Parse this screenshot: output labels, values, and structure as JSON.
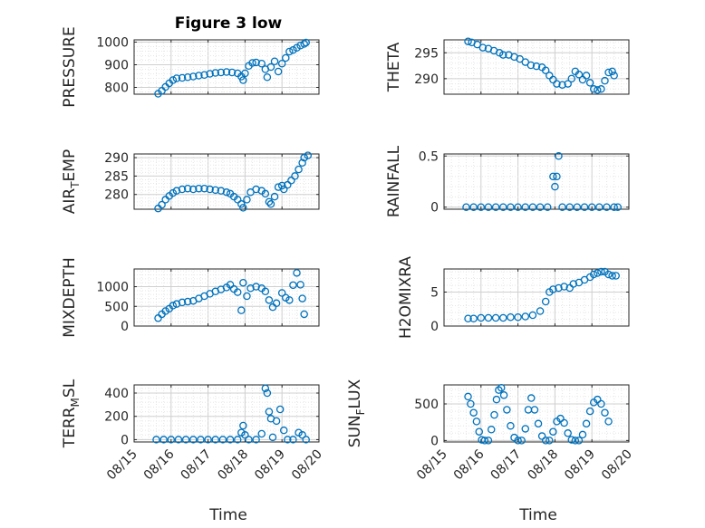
{
  "figure": {
    "title": "Figure 3 low",
    "xlabel": "Time",
    "marker_color": "#0072BD",
    "marker": "open-circle",
    "grid": "major+minor dotted"
  },
  "x_ticks": [
    "08/15",
    "08/16",
    "08/17",
    "08/18",
    "08/19",
    "08/20"
  ],
  "chart_data": [
    {
      "type": "scatter",
      "ylabel": "PRESSURE",
      "title": "Figure 3 low",
      "xlim": [
        15,
        20
      ],
      "ylim": [
        770,
        1010
      ],
      "yticks": [
        {
          "v": 800,
          "t": "800"
        },
        {
          "v": 900,
          "t": "900"
        },
        {
          "v": 1000,
          "t": "1000"
        }
      ],
      "points": [
        [
          15.65,
          772
        ],
        [
          15.75,
          785
        ],
        [
          15.85,
          802
        ],
        [
          15.95,
          818
        ],
        [
          16.05,
          832
        ],
        [
          16.15,
          840
        ],
        [
          16.3,
          842
        ],
        [
          16.45,
          845
        ],
        [
          16.6,
          848
        ],
        [
          16.75,
          852
        ],
        [
          16.9,
          855
        ],
        [
          17.05,
          860
        ],
        [
          17.2,
          864
        ],
        [
          17.35,
          866
        ],
        [
          17.5,
          868
        ],
        [
          17.65,
          866
        ],
        [
          17.8,
          862
        ],
        [
          17.9,
          848
        ],
        [
          17.95,
          832
        ],
        [
          18.0,
          862
        ],
        [
          18.1,
          895
        ],
        [
          18.2,
          908
        ],
        [
          18.3,
          910
        ],
        [
          18.45,
          905
        ],
        [
          18.55,
          880
        ],
        [
          18.6,
          845
        ],
        [
          18.7,
          890
        ],
        [
          18.8,
          915
        ],
        [
          18.9,
          870
        ],
        [
          19.0,
          905
        ],
        [
          19.1,
          930
        ],
        [
          19.2,
          958
        ],
        [
          19.3,
          965
        ],
        [
          19.4,
          975
        ],
        [
          19.5,
          985
        ],
        [
          19.6,
          992
        ],
        [
          19.65,
          998
        ]
      ]
    },
    {
      "type": "scatter",
      "ylabel": "THETA",
      "xlim": [
        15,
        20
      ],
      "ylim": [
        287,
        297.5
      ],
      "yticks": [
        {
          "v": 290,
          "t": "290"
        },
        {
          "v": 295,
          "t": "295"
        }
      ],
      "points": [
        [
          15.65,
          297.2
        ],
        [
          15.75,
          297.0
        ],
        [
          15.9,
          296.6
        ],
        [
          16.05,
          296.0
        ],
        [
          16.2,
          295.8
        ],
        [
          16.35,
          295.4
        ],
        [
          16.5,
          295.0
        ],
        [
          16.6,
          294.6
        ],
        [
          16.75,
          294.6
        ],
        [
          16.9,
          294.2
        ],
        [
          17.05,
          293.8
        ],
        [
          17.2,
          293.2
        ],
        [
          17.35,
          292.6
        ],
        [
          17.5,
          292.4
        ],
        [
          17.65,
          292.2
        ],
        [
          17.75,
          291.6
        ],
        [
          17.85,
          290.6
        ],
        [
          17.95,
          289.8
        ],
        [
          18.05,
          289.0
        ],
        [
          18.2,
          288.8
        ],
        [
          18.35,
          289.0
        ],
        [
          18.45,
          290.0
        ],
        [
          18.55,
          291.4
        ],
        [
          18.65,
          290.8
        ],
        [
          18.75,
          289.8
        ],
        [
          18.85,
          290.6
        ],
        [
          18.95,
          289.2
        ],
        [
          19.05,
          288.0
        ],
        [
          19.15,
          287.8
        ],
        [
          19.25,
          288.0
        ],
        [
          19.35,
          289.6
        ],
        [
          19.45,
          291.2
        ],
        [
          19.55,
          291.4
        ],
        [
          19.6,
          290.6
        ]
      ]
    },
    {
      "type": "scatter",
      "ylabel": "AIR_TEMP",
      "ylabel_parts": [
        "AIR",
        "T",
        "EMP"
      ],
      "xlim": [
        15,
        20
      ],
      "ylim": [
        276,
        291
      ],
      "yticks": [
        {
          "v": 280,
          "t": "280"
        },
        {
          "v": 285,
          "t": "285"
        },
        {
          "v": 290,
          "t": "290"
        }
      ],
      "points": [
        [
          15.65,
          276.2
        ],
        [
          15.75,
          277.2
        ],
        [
          15.85,
          278.6
        ],
        [
          15.95,
          279.6
        ],
        [
          16.05,
          280.4
        ],
        [
          16.15,
          281.0
        ],
        [
          16.3,
          281.4
        ],
        [
          16.45,
          281.6
        ],
        [
          16.6,
          281.4
        ],
        [
          16.75,
          281.6
        ],
        [
          16.9,
          281.6
        ],
        [
          17.05,
          281.4
        ],
        [
          17.2,
          281.2
        ],
        [
          17.35,
          281.0
        ],
        [
          17.5,
          280.6
        ],
        [
          17.6,
          280.2
        ],
        [
          17.7,
          279.4
        ],
        [
          17.8,
          278.6
        ],
        [
          17.9,
          277.4
        ],
        [
          17.95,
          276.4
        ],
        [
          18.05,
          278.6
        ],
        [
          18.15,
          280.6
        ],
        [
          18.3,
          281.4
        ],
        [
          18.45,
          281.0
        ],
        [
          18.55,
          280.2
        ],
        [
          18.65,
          278.0
        ],
        [
          18.7,
          277.4
        ],
        [
          18.8,
          279.4
        ],
        [
          18.9,
          282.0
        ],
        [
          19.0,
          282.4
        ],
        [
          19.05,
          281.4
        ],
        [
          19.15,
          282.6
        ],
        [
          19.25,
          283.8
        ],
        [
          19.35,
          285.0
        ],
        [
          19.45,
          286.8
        ],
        [
          19.55,
          288.6
        ],
        [
          19.6,
          290.0
        ],
        [
          19.7,
          290.6
        ]
      ]
    },
    {
      "type": "scatter",
      "ylabel": "RAINFALL",
      "xlim": [
        15,
        20
      ],
      "ylim": [
        -0.02,
        0.52
      ],
      "yticks": [
        {
          "v": 0,
          "t": "0"
        },
        {
          "v": 0.5,
          "t": "0.5"
        }
      ],
      "points": [
        [
          15.6,
          0
        ],
        [
          15.8,
          0
        ],
        [
          16.0,
          0
        ],
        [
          16.2,
          0
        ],
        [
          16.4,
          0
        ],
        [
          16.6,
          0
        ],
        [
          16.8,
          0
        ],
        [
          17.0,
          0
        ],
        [
          17.2,
          0
        ],
        [
          17.4,
          0
        ],
        [
          17.6,
          0
        ],
        [
          17.8,
          0
        ],
        [
          17.95,
          0.3
        ],
        [
          18.0,
          0.2
        ],
        [
          18.05,
          0.3
        ],
        [
          18.1,
          0.5
        ],
        [
          18.2,
          0
        ],
        [
          18.4,
          0
        ],
        [
          18.6,
          0
        ],
        [
          18.8,
          0
        ],
        [
          19.0,
          0
        ],
        [
          19.2,
          0
        ],
        [
          19.4,
          0
        ],
        [
          19.6,
          0
        ],
        [
          19.7,
          0
        ]
      ]
    },
    {
      "type": "scatter",
      "ylabel": "MIXDEPTH",
      "xlim": [
        15,
        20
      ],
      "ylim": [
        0,
        1450
      ],
      "yticks": [
        {
          "v": 0,
          "t": "0"
        },
        {
          "v": 500,
          "t": "500"
        },
        {
          "v": 1000,
          "t": "1000"
        }
      ],
      "points": [
        [
          15.65,
          200
        ],
        [
          15.75,
          300
        ],
        [
          15.85,
          380
        ],
        [
          15.95,
          440
        ],
        [
          16.05,
          520
        ],
        [
          16.15,
          560
        ],
        [
          16.3,
          600
        ],
        [
          16.45,
          620
        ],
        [
          16.6,
          640
        ],
        [
          16.75,
          700
        ],
        [
          16.9,
          760
        ],
        [
          17.05,
          820
        ],
        [
          17.2,
          880
        ],
        [
          17.35,
          930
        ],
        [
          17.5,
          980
        ],
        [
          17.6,
          1050
        ],
        [
          17.7,
          940
        ],
        [
          17.8,
          860
        ],
        [
          17.9,
          400
        ],
        [
          17.95,
          1100
        ],
        [
          18.05,
          760
        ],
        [
          18.15,
          960
        ],
        [
          18.3,
          1000
        ],
        [
          18.45,
          960
        ],
        [
          18.55,
          880
        ],
        [
          18.65,
          660
        ],
        [
          18.75,
          480
        ],
        [
          18.85,
          580
        ],
        [
          19.0,
          840
        ],
        [
          19.1,
          720
        ],
        [
          19.2,
          660
        ],
        [
          19.3,
          1040
        ],
        [
          19.4,
          1350
        ],
        [
          19.5,
          1050
        ],
        [
          19.55,
          700
        ],
        [
          19.6,
          300
        ]
      ]
    },
    {
      "type": "scatter",
      "ylabel": "H2OMIXRA",
      "xlim": [
        15,
        20
      ],
      "ylim": [
        0,
        8.4
      ],
      "yticks": [
        {
          "v": 0,
          "t": "0"
        },
        {
          "v": 5,
          "t": "5"
        }
      ],
      "points": [
        [
          15.65,
          1.1
        ],
        [
          15.8,
          1.1
        ],
        [
          16.0,
          1.2
        ],
        [
          16.2,
          1.2
        ],
        [
          16.4,
          1.2
        ],
        [
          16.6,
          1.2
        ],
        [
          16.8,
          1.3
        ],
        [
          17.0,
          1.3
        ],
        [
          17.2,
          1.4
        ],
        [
          17.4,
          1.6
        ],
        [
          17.6,
          2.2
        ],
        [
          17.75,
          3.6
        ],
        [
          17.85,
          5.0
        ],
        [
          17.95,
          5.4
        ],
        [
          18.1,
          5.6
        ],
        [
          18.25,
          5.8
        ],
        [
          18.4,
          5.6
        ],
        [
          18.5,
          6.2
        ],
        [
          18.65,
          6.4
        ],
        [
          18.8,
          6.8
        ],
        [
          18.95,
          7.2
        ],
        [
          19.05,
          7.6
        ],
        [
          19.15,
          7.8
        ],
        [
          19.25,
          8.0
        ],
        [
          19.35,
          8.0
        ],
        [
          19.45,
          7.6
        ],
        [
          19.55,
          7.4
        ],
        [
          19.65,
          7.4
        ]
      ]
    },
    {
      "type": "scatter",
      "ylabel": "TERR_MSL",
      "ylabel_parts": [
        "TERR",
        "M",
        "SL"
      ],
      "xlim": [
        15,
        20
      ],
      "ylim": [
        -20,
        470
      ],
      "yticks": [
        {
          "v": 0,
          "t": "0"
        },
        {
          "v": 200,
          "t": "200"
        },
        {
          "v": 400,
          "t": "400"
        }
      ],
      "points": [
        [
          15.6,
          0
        ],
        [
          15.8,
          0
        ],
        [
          16.0,
          0
        ],
        [
          16.2,
          0
        ],
        [
          16.4,
          0
        ],
        [
          16.6,
          0
        ],
        [
          16.8,
          0
        ],
        [
          17.0,
          0
        ],
        [
          17.2,
          0
        ],
        [
          17.4,
          0
        ],
        [
          17.6,
          0
        ],
        [
          17.8,
          0
        ],
        [
          17.9,
          60
        ],
        [
          17.95,
          120
        ],
        [
          18.0,
          40
        ],
        [
          18.1,
          0
        ],
        [
          18.3,
          0
        ],
        [
          18.45,
          50
        ],
        [
          18.55,
          440
        ],
        [
          18.6,
          400
        ],
        [
          18.65,
          240
        ],
        [
          18.7,
          180
        ],
        [
          18.75,
          20
        ],
        [
          18.85,
          160
        ],
        [
          18.95,
          260
        ],
        [
          19.05,
          80
        ],
        [
          19.15,
          0
        ],
        [
          19.3,
          0
        ],
        [
          19.45,
          60
        ],
        [
          19.55,
          40
        ],
        [
          19.65,
          0
        ]
      ]
    },
    {
      "type": "scatter",
      "ylabel": "SUN_FLUX",
      "ylabel_parts": [
        "SUN",
        "F",
        "LUX"
      ],
      "xlim": [
        15,
        20
      ],
      "ylim": [
        -20,
        760
      ],
      "yticks": [
        {
          "v": 0,
          "t": "0"
        },
        {
          "v": 500,
          "t": "500"
        }
      ],
      "points": [
        [
          15.65,
          600
        ],
        [
          15.72,
          500
        ],
        [
          15.8,
          380
        ],
        [
          15.88,
          260
        ],
        [
          15.95,
          120
        ],
        [
          16.02,
          10
        ],
        [
          16.1,
          0
        ],
        [
          16.2,
          0
        ],
        [
          16.28,
          150
        ],
        [
          16.36,
          350
        ],
        [
          16.42,
          560
        ],
        [
          16.48,
          690
        ],
        [
          16.55,
          720
        ],
        [
          16.62,
          620
        ],
        [
          16.7,
          420
        ],
        [
          16.8,
          200
        ],
        [
          16.9,
          40
        ],
        [
          17.0,
          0
        ],
        [
          17.1,
          0
        ],
        [
          17.2,
          160
        ],
        [
          17.28,
          420
        ],
        [
          17.36,
          580
        ],
        [
          17.45,
          420
        ],
        [
          17.55,
          230
        ],
        [
          17.65,
          60
        ],
        [
          17.75,
          0
        ],
        [
          17.85,
          0
        ],
        [
          17.95,
          120
        ],
        [
          18.05,
          260
        ],
        [
          18.15,
          300
        ],
        [
          18.25,
          240
        ],
        [
          18.35,
          100
        ],
        [
          18.45,
          10
        ],
        [
          18.55,
          0
        ],
        [
          18.65,
          0
        ],
        [
          18.75,
          80
        ],
        [
          18.85,
          230
        ],
        [
          18.95,
          400
        ],
        [
          19.05,
          520
        ],
        [
          19.15,
          560
        ],
        [
          19.25,
          500
        ],
        [
          19.35,
          380
        ],
        [
          19.45,
          260
        ]
      ]
    }
  ]
}
